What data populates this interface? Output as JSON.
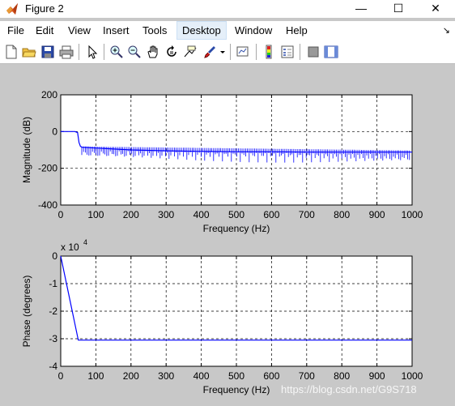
{
  "window": {
    "title": "Figure 2",
    "minimize_glyph": "—",
    "maximize_glyph": "☐",
    "close_glyph": "✕"
  },
  "menubar": {
    "items": [
      "File",
      "Edit",
      "View",
      "Insert",
      "Tools",
      "Desktop",
      "Window",
      "Help"
    ],
    "dock_glyph": "↘"
  },
  "toolbar": {
    "icons": [
      "new-figure-icon",
      "open-file-icon",
      "save-icon",
      "print-icon",
      "edit-plot-arrow-icon",
      "zoom-in-icon",
      "zoom-out-icon",
      "pan-hand-icon",
      "rotate-3d-icon",
      "data-cursor-icon",
      "brush-icon",
      "brush-dropdown-icon",
      "link-plot-icon",
      "insert-colorbar-icon",
      "insert-legend-icon",
      "hide-plot-tools-icon",
      "show-plot-tools-icon"
    ]
  },
  "plot_colors": {
    "background": "#c8c8c8",
    "axes_bg": "#ffffff",
    "line": "#0000ff",
    "grid": "#000000"
  },
  "chart_data": [
    {
      "type": "line",
      "title": "",
      "xlabel": "Frequency (Hz)",
      "ylabel": "Magnitude (dB)",
      "xlim": [
        0,
        1000
      ],
      "ylim": [
        -400,
        200
      ],
      "xticks": [
        0,
        100,
        200,
        300,
        400,
        500,
        600,
        700,
        800,
        900,
        1000
      ],
      "yticks": [
        -400,
        -200,
        0,
        200
      ],
      "grid": true,
      "series": [
        {
          "x": [
            0,
            40,
            48,
            52,
            56,
            60,
            100,
            200,
            300,
            400,
            500,
            600,
            700,
            800,
            900,
            1000
          ],
          "y": [
            0,
            0,
            -5,
            -60,
            -80,
            -85,
            -90,
            -100,
            -105,
            -108,
            -110,
            -110,
            -112,
            -112,
            -112,
            -112
          ]
        }
      ]
    },
    {
      "type": "line",
      "title": "",
      "xlabel": "Frequency (Hz)",
      "ylabel": "Phase (degrees)",
      "multiplier_label": "x 10",
      "multiplier_exp": "4",
      "xlim": [
        0,
        1000
      ],
      "ylim": [
        -4,
        0
      ],
      "xticks": [
        0,
        100,
        200,
        300,
        400,
        500,
        600,
        700,
        800,
        900,
        1000
      ],
      "yticks": [
        -4,
        -3,
        -2,
        -1,
        0
      ],
      "grid": true,
      "series": [
        {
          "x": [
            0,
            50,
            100,
            200,
            300,
            400,
            500,
            600,
            700,
            800,
            900,
            1000
          ],
          "y": [
            0,
            -3.05,
            -3.05,
            -3.05,
            -3.05,
            -3.05,
            -3.05,
            -3.05,
            -3.05,
            -3.05,
            -3.05,
            -3.05
          ]
        }
      ]
    }
  ],
  "watermark": "https://blog.csdn.net/G9S718"
}
